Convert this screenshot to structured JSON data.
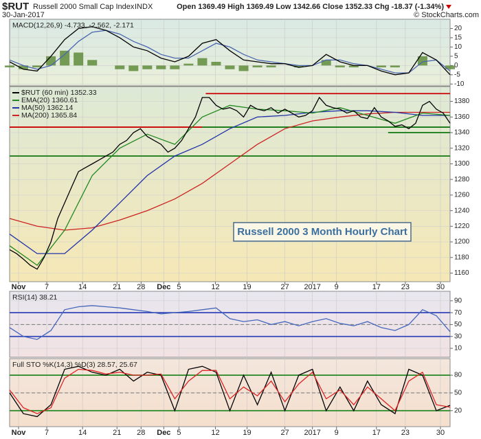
{
  "header": {
    "symbol": "$RUT",
    "name": "Russell 2000 Small Cap Index",
    "exchange": "INDX",
    "date": "30-Jan-2017",
    "quote": "Open 1369.49 High 1369.49 Low 1342.66 Close 1352.33 Chg -18.37 (-1.34%)",
    "copyright": "© StockCharts.com"
  },
  "chart_data": [
    {
      "type": "line",
      "label": "MACD(12,26,9) -4.733, -2.562, -2.171",
      "xlim": [
        0,
        64
      ],
      "ylim": [
        -11,
        25
      ],
      "yticks": [
        20,
        15,
        10,
        5,
        0,
        -5,
        -10
      ],
      "x": [
        0,
        2,
        4,
        6,
        8,
        10,
        12,
        14,
        16,
        18,
        20,
        22,
        24,
        26,
        28,
        30,
        32,
        34,
        36,
        38,
        40,
        42,
        44,
        46,
        48,
        50,
        52,
        54,
        56,
        58,
        60,
        62,
        64
      ],
      "series": [
        {
          "style": "bar",
          "color": "#5f8c3c",
          "values": [
            -1,
            -2,
            -1,
            5,
            8,
            7,
            3,
            0,
            -2,
            -3,
            -2,
            -2,
            -2,
            1,
            4,
            2,
            -2,
            -3,
            -1,
            -1,
            0,
            -1,
            0,
            3,
            -1,
            -1,
            0,
            -1,
            -1,
            0,
            5,
            0,
            -2
          ]
        },
        {
          "color": "#4a66b0",
          "values": [
            3,
            0,
            -2,
            0,
            6,
            13,
            18,
            19,
            17,
            13,
            10,
            6,
            4,
            4,
            8,
            12,
            10,
            6,
            3,
            2,
            1,
            0,
            0,
            3,
            3,
            1,
            0,
            -2,
            -4,
            -4,
            2,
            3,
            -3
          ]
        },
        {
          "color": "#000000",
          "values": [
            2,
            -2,
            -3,
            5,
            14,
            20,
            21,
            19,
            15,
            10,
            8,
            4,
            2,
            5,
            12,
            14,
            8,
            3,
            2,
            1,
            1,
            -1,
            0,
            6,
            2,
            0,
            0,
            -3,
            -5,
            -4,
            7,
            3,
            -5
          ]
        }
      ]
    },
    {
      "type": "line",
      "xlim": [
        0,
        64
      ],
      "ylim": [
        1149,
        1399
      ],
      "yticks": [
        1160,
        1180,
        1200,
        1220,
        1240,
        1260,
        1280,
        1300,
        1320,
        1340,
        1360,
        1380
      ],
      "xticks": [
        {
          "value": 1.3,
          "label": "Nov"
        },
        {
          "value": 5.4,
          "label": "7"
        },
        {
          "value": 10.6,
          "label": "14"
        },
        {
          "value": 15.6,
          "label": "21"
        },
        {
          "value": 19.1,
          "label": "28"
        },
        {
          "value": 22.4,
          "label": "Dec"
        },
        {
          "value": 24.6,
          "label": "5"
        },
        {
          "value": 29.9,
          "label": "12"
        },
        {
          "value": 34.5,
          "label": "19"
        },
        {
          "value": 40,
          "label": "27"
        },
        {
          "value": 44,
          "label": "2017"
        },
        {
          "value": 47.5,
          "label": "9"
        },
        {
          "value": 53.3,
          "label": "17"
        },
        {
          "value": 57.5,
          "label": "23"
        },
        {
          "value": 62.6,
          "label": "30"
        }
      ],
      "x": [
        0,
        1,
        2,
        3,
        4,
        5,
        6,
        7,
        8,
        9,
        10,
        11,
        12,
        13,
        14,
        15,
        16,
        17,
        18,
        19,
        20,
        21,
        22,
        23,
        24,
        25,
        26,
        27,
        28,
        29,
        30,
        31,
        32,
        33,
        34,
        35,
        36,
        37,
        38,
        39,
        40,
        41,
        42,
        43,
        44,
        45,
        46,
        47,
        48,
        49,
        50,
        51,
        52,
        53,
        54,
        55,
        56,
        57,
        58,
        59,
        60,
        61,
        62,
        63,
        64
      ],
      "series": [
        {
          "name": "MA(200) 1365.84",
          "color": "#cc2222",
          "x": [
            0,
            4,
            8,
            12,
            16,
            20,
            24,
            28,
            32,
            36,
            40,
            44,
            48,
            52,
            56,
            60,
            64
          ],
          "values": [
            1230,
            1220,
            1215,
            1218,
            1228,
            1240,
            1255,
            1275,
            1300,
            1325,
            1345,
            1355,
            1360,
            1364,
            1366,
            1366,
            1366
          ]
        },
        {
          "name": "MA(50) 1362.14",
          "color": "#2233aa",
          "x": [
            0,
            4,
            8,
            12,
            16,
            20,
            24,
            28,
            32,
            36,
            40,
            44,
            48,
            52,
            56,
            60,
            64
          ],
          "values": [
            1210,
            1185,
            1185,
            1215,
            1250,
            1285,
            1310,
            1325,
            1345,
            1360,
            1362,
            1366,
            1368,
            1368,
            1366,
            1362,
            1362
          ]
        },
        {
          "name": "EMA(20) 1360.61",
          "color": "#228822",
          "x": [
            0,
            4,
            8,
            12,
            16,
            20,
            24,
            28,
            32,
            36,
            40,
            44,
            48,
            52,
            56,
            60,
            64
          ],
          "values": [
            1195,
            1170,
            1215,
            1285,
            1320,
            1338,
            1325,
            1360,
            1375,
            1370,
            1368,
            1365,
            1372,
            1362,
            1352,
            1365,
            1362
          ]
        },
        {
          "name": "$RUT (60 min) 1352.33",
          "color": "#000000",
          "values": [
            1190,
            1185,
            1178,
            1170,
            1165,
            1180,
            1200,
            1230,
            1250,
            1270,
            1290,
            1295,
            1300,
            1305,
            1310,
            1315,
            1325,
            1330,
            1340,
            1345,
            1335,
            1330,
            1325,
            1315,
            1320,
            1330,
            1345,
            1360,
            1385,
            1385,
            1375,
            1370,
            1372,
            1368,
            1360,
            1375,
            1370,
            1368,
            1372,
            1365,
            1370,
            1365,
            1360,
            1362,
            1368,
            1385,
            1375,
            1372,
            1370,
            1365,
            1368,
            1360,
            1358,
            1372,
            1360,
            1355,
            1348,
            1350,
            1345,
            1352,
            1375,
            1380,
            1370,
            1365,
            1352
          ]
        }
      ],
      "levels": [
        {
          "value": 1390,
          "color": "#cc0000",
          "x": [
            28.5,
            64
          ]
        },
        {
          "value": 1347,
          "color": "#cc0000",
          "x": [
            0,
            28
          ]
        },
        {
          "value": 1347,
          "color": "#117711",
          "x": [
            28,
            64
          ]
        },
        {
          "value": 1310,
          "color": "#117711",
          "x": [
            0,
            64
          ]
        },
        {
          "value": 1340,
          "color": "#117711",
          "x": [
            55,
            64
          ]
        }
      ],
      "annotation": "Russell 2000 3 Month Hourly Chart"
    },
    {
      "type": "line",
      "label": "RSI(14) 38.21",
      "xlim": [
        0,
        64
      ],
      "ylim": [
        -5,
        106
      ],
      "yticks": [
        90,
        70,
        50,
        30,
        10
      ],
      "x": [
        0,
        2,
        4,
        6,
        8,
        10,
        12,
        14,
        16,
        18,
        20,
        22,
        24,
        26,
        28,
        30,
        32,
        34,
        36,
        38,
        40,
        42,
        44,
        46,
        48,
        50,
        52,
        54,
        56,
        58,
        60,
        62,
        64
      ],
      "series": [
        {
          "color": "#4466bb",
          "values": [
            45,
            30,
            25,
            40,
            75,
            80,
            82,
            80,
            78,
            75,
            72,
            68,
            70,
            72,
            75,
            78,
            60,
            55,
            58,
            50,
            55,
            48,
            55,
            60,
            52,
            48,
            55,
            45,
            40,
            50,
            75,
            65,
            38
          ]
        }
      ],
      "levels": [
        {
          "value": 70,
          "color": "#3344bb",
          "x": [
            0,
            64
          ]
        },
        {
          "value": 50,
          "color": "#777777",
          "dash": true,
          "x": [
            0,
            64
          ]
        },
        {
          "value": 30,
          "color": "#3344bb",
          "x": [
            0,
            64
          ]
        }
      ]
    },
    {
      "type": "line",
      "label": "Full STO %K(14,3) %D(3) 28.57, 25.67",
      "xlim": [
        0,
        64
      ],
      "ylim": [
        -7,
        108
      ],
      "yticks": [
        80,
        50,
        20
      ],
      "xticks": [
        {
          "value": 1.3,
          "label": "Nov"
        },
        {
          "value": 5.4,
          "label": "7"
        },
        {
          "value": 10.6,
          "label": "14"
        },
        {
          "value": 15.6,
          "label": "21"
        },
        {
          "value": 19.1,
          "label": "28"
        },
        {
          "value": 22.4,
          "label": "Dec"
        },
        {
          "value": 24.6,
          "label": "5"
        },
        {
          "value": 29.9,
          "label": "12"
        },
        {
          "value": 34.5,
          "label": "19"
        },
        {
          "value": 40,
          "label": "27"
        },
        {
          "value": 44,
          "label": "2017"
        },
        {
          "value": 47.5,
          "label": "9"
        },
        {
          "value": 53.3,
          "label": "17"
        },
        {
          "value": 57.5,
          "label": "23"
        },
        {
          "value": 62.6,
          "label": "30"
        }
      ],
      "x": [
        0,
        2,
        4,
        6,
        8,
        10,
        12,
        14,
        16,
        18,
        20,
        22,
        24,
        26,
        28,
        30,
        32,
        34,
        36,
        38,
        40,
        42,
        44,
        46,
        48,
        50,
        52,
        54,
        56,
        58,
        60,
        62,
        64
      ],
      "series": [
        {
          "color": "#000000",
          "values": [
            50,
            15,
            10,
            30,
            90,
            95,
            85,
            80,
            90,
            70,
            85,
            80,
            20,
            90,
            95,
            85,
            20,
            80,
            30,
            85,
            20,
            80,
            90,
            20,
            60,
            20,
            70,
            30,
            15,
            90,
            80,
            20,
            29
          ]
        },
        {
          "color": "#dd2222",
          "values": [
            55,
            25,
            15,
            25,
            75,
            90,
            88,
            82,
            85,
            80,
            80,
            82,
            40,
            70,
            88,
            88,
            40,
            60,
            45,
            70,
            35,
            65,
            85,
            40,
            55,
            30,
            60,
            40,
            20,
            70,
            85,
            30,
            26
          ]
        }
      ],
      "levels": [
        {
          "value": 80,
          "color": "#228822",
          "x": [
            0,
            64
          ]
        },
        {
          "value": 50,
          "color": "#777777",
          "dash": true,
          "x": [
            0,
            64
          ]
        },
        {
          "value": 20,
          "color": "#228822",
          "x": [
            0,
            64
          ]
        }
      ]
    }
  ]
}
